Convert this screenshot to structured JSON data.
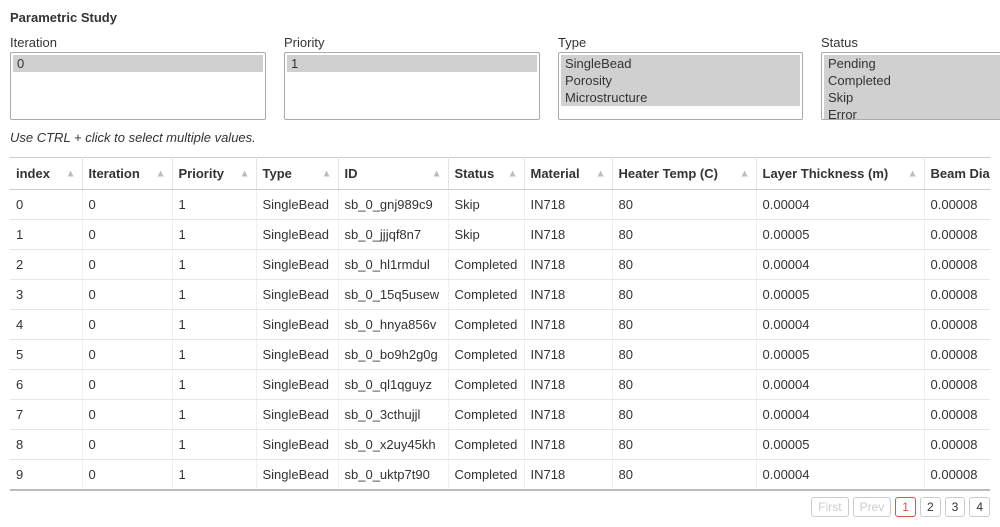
{
  "title": "Parametric Study",
  "filters": {
    "iteration": {
      "label": "Iteration",
      "options": [
        "0"
      ],
      "selected": [
        0
      ]
    },
    "priority": {
      "label": "Priority",
      "options": [
        "1"
      ],
      "selected": [
        0
      ]
    },
    "type": {
      "label": "Type",
      "options": [
        "SingleBead",
        "Porosity",
        "Microstructure"
      ],
      "selected": [
        0,
        1,
        2
      ]
    },
    "status": {
      "label": "Status",
      "options": [
        "Pending",
        "Completed",
        "Skip",
        "Error"
      ],
      "selected": [
        0,
        1,
        2,
        3
      ]
    }
  },
  "hint": "Use CTRL + click to select multiple values.",
  "table": {
    "columns": [
      {
        "key": "index",
        "label": "index"
      },
      {
        "key": "iteration",
        "label": "Iteration"
      },
      {
        "key": "priority",
        "label": "Priority"
      },
      {
        "key": "type",
        "label": "Type"
      },
      {
        "key": "id",
        "label": "ID"
      },
      {
        "key": "status",
        "label": "Status"
      },
      {
        "key": "material",
        "label": "Material"
      },
      {
        "key": "heater",
        "label": "Heater Temp (C)"
      },
      {
        "key": "layer",
        "label": "Layer Thickness (m)"
      },
      {
        "key": "beam",
        "label": "Beam Diam"
      }
    ],
    "rows": [
      [
        "0",
        "0",
        "1",
        "SingleBead",
        "sb_0_gnj989c9",
        "Skip",
        "IN718",
        "80",
        "0.00004",
        "0.00008"
      ],
      [
        "1",
        "0",
        "1",
        "SingleBead",
        "sb_0_jjjqf8n7",
        "Skip",
        "IN718",
        "80",
        "0.00005",
        "0.00008"
      ],
      [
        "2",
        "0",
        "1",
        "SingleBead",
        "sb_0_hl1rmdul",
        "Completed",
        "IN718",
        "80",
        "0.00004",
        "0.00008"
      ],
      [
        "3",
        "0",
        "1",
        "SingleBead",
        "sb_0_15q5usew",
        "Completed",
        "IN718",
        "80",
        "0.00005",
        "0.00008"
      ],
      [
        "4",
        "0",
        "1",
        "SingleBead",
        "sb_0_hnya856v",
        "Completed",
        "IN718",
        "80",
        "0.00004",
        "0.00008"
      ],
      [
        "5",
        "0",
        "1",
        "SingleBead",
        "sb_0_bo9h2g0g",
        "Completed",
        "IN718",
        "80",
        "0.00005",
        "0.00008"
      ],
      [
        "6",
        "0",
        "1",
        "SingleBead",
        "sb_0_ql1qguyz",
        "Completed",
        "IN718",
        "80",
        "0.00004",
        "0.00008"
      ],
      [
        "7",
        "0",
        "1",
        "SingleBead",
        "sb_0_3cthujjl",
        "Completed",
        "IN718",
        "80",
        "0.00004",
        "0.00008"
      ],
      [
        "8",
        "0",
        "1",
        "SingleBead",
        "sb_0_x2uy45kh",
        "Completed",
        "IN718",
        "80",
        "0.00005",
        "0.00008"
      ],
      [
        "9",
        "0",
        "1",
        "SingleBead",
        "sb_0_uktp7t90",
        "Completed",
        "IN718",
        "80",
        "0.00004",
        "0.00008"
      ]
    ]
  },
  "pagination": {
    "first": "First",
    "prev": "Prev",
    "pages": [
      "1",
      "2",
      "3",
      "4"
    ],
    "active": 0,
    "first_disabled": true,
    "prev_disabled": true
  },
  "colors": {
    "sort_icon": "#bbbbbb",
    "border": "#cccccc",
    "active_page": "#d9534f"
  }
}
